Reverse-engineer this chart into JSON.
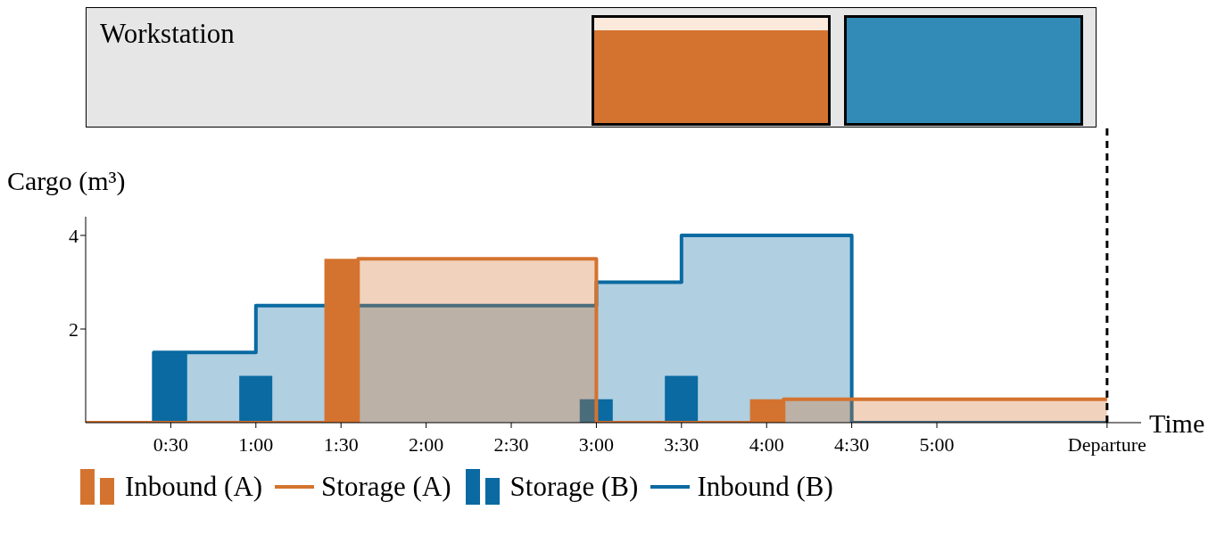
{
  "chart_data": {
    "type": "step",
    "xlabel": "Time",
    "ylabel": "Cargo (m³)",
    "annotations": [
      "Workstation"
    ],
    "xlim": [
      0,
      6.2
    ],
    "ylim": [
      0,
      4.4
    ],
    "yticks": [
      2,
      4
    ],
    "xticks": [
      {
        "value": 0.5,
        "label": "0:30"
      },
      {
        "value": 1,
        "label": "1:00"
      },
      {
        "value": 1.5,
        "label": "1:30"
      },
      {
        "value": 2,
        "label": "2:00"
      },
      {
        "value": 2.5,
        "label": "2:30"
      },
      {
        "value": 3,
        "label": "3:00"
      },
      {
        "value": 3.5,
        "label": "3:30"
      },
      {
        "value": 4,
        "label": "4:00"
      },
      {
        "value": 4.5,
        "label": "4:30"
      },
      {
        "value": 5,
        "label": "5:00"
      },
      {
        "value": 6,
        "label": "Departure"
      }
    ],
    "series": [
      {
        "name": "Inbound (A)",
        "type": "bar",
        "color": "#d4732f",
        "x": [
          1.5,
          4
        ],
        "values": [
          3.5,
          0.5
        ]
      },
      {
        "name": "Storage (A)",
        "color": "#d4732f",
        "x": [
          0,
          1.6,
          3,
          4.1,
          6
        ],
        "values": [
          0,
          3.5,
          0,
          0.5,
          0.5
        ]
      },
      {
        "name": "Storage (B)",
        "type": "bar",
        "color": "#0a6aa1",
        "x": [
          0.5,
          1,
          3,
          3.5
        ],
        "values": [
          1.5,
          1,
          0.5,
          1
        ]
      },
      {
        "name": "Inbound (B)",
        "color": "#0a6aa1",
        "x": [
          0,
          0.4,
          1,
          3,
          3.5,
          4.5,
          6
        ],
        "values": [
          0,
          1.5,
          2.5,
          3,
          4,
          0,
          0
        ]
      }
    ],
    "ref_lines": [
      {
        "axis": "x",
        "value": 6,
        "color": "#000000",
        "line_style": "dashed"
      }
    ],
    "legend": "bottom"
  }
}
